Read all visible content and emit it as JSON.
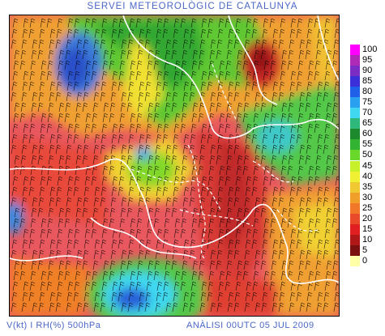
{
  "title": "SERVEI METEOROLÒGIC DE CATALUNYA",
  "footer": {
    "left": "V(kt) I RH(%) 500hPa",
    "right": "ANÀLISI 00UTC 05 JUL 2009"
  },
  "legend": {
    "items": [
      {
        "label": "100",
        "color": "#ff00ff"
      },
      {
        "label": "95",
        "color": "#b02ab8"
      },
      {
        "label": "90",
        "color": "#7a2cc4"
      },
      {
        "label": "85",
        "color": "#3a2fd8"
      },
      {
        "label": "80",
        "color": "#2060e8"
      },
      {
        "label": "75",
        "color": "#2aa0f0"
      },
      {
        "label": "70",
        "color": "#40d8f0"
      },
      {
        "label": "65",
        "color": "#2eb87c"
      },
      {
        "label": "60",
        "color": "#1e8a2e"
      },
      {
        "label": "55",
        "color": "#32b432"
      },
      {
        "label": "50",
        "color": "#6ad82a"
      },
      {
        "label": "45",
        "color": "#c8f02a"
      },
      {
        "label": "40",
        "color": "#f0f032"
      },
      {
        "label": "35",
        "color": "#f0c832"
      },
      {
        "label": "30",
        "color": "#f0a028"
      },
      {
        "label": "25",
        "color": "#f07828"
      },
      {
        "label": "20",
        "color": "#e84a2a"
      },
      {
        "label": "15",
        "color": "#e02020"
      },
      {
        "label": "10",
        "color": "#b01818"
      },
      {
        "label": "5",
        "color": "#7a1010"
      },
      {
        "label": "0",
        "color": "#ffffa8"
      }
    ]
  }
}
